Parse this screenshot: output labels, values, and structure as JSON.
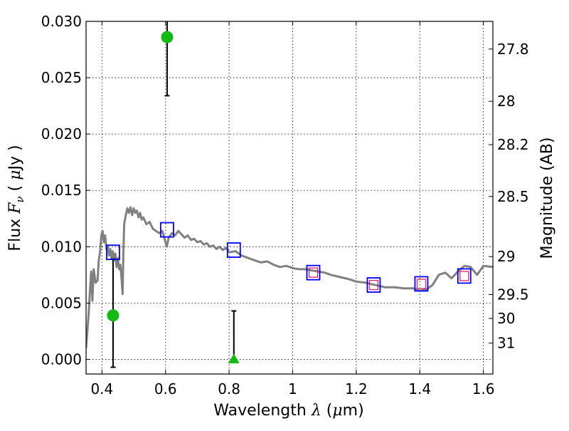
{
  "chart_data": {
    "type": "scatter",
    "xlabel": {
      "prefix": "Wavelength",
      "lambda": "λ",
      "unit_open": "(",
      "mu": "μ",
      "unit_rest": "m)"
    },
    "ylabel": {
      "prefix": "Flux",
      "F": "F",
      "nu": "ν",
      "unit_open": "(",
      "mu": "μ",
      "unit_rest": "Jy )"
    },
    "y2label": "Magnitude (AB)",
    "xlim": [
      0.35,
      1.63
    ],
    "ylim": [
      -0.0013,
      0.03
    ],
    "grid": true,
    "grid_style": "dotted",
    "x_ticks": [
      {
        "v": 0.4,
        "label": "0.4"
      },
      {
        "v": 0.6,
        "label": "0.6"
      },
      {
        "v": 0.8,
        "label": "0.8"
      },
      {
        "v": 1.0,
        "label": "1"
      },
      {
        "v": 1.2,
        "label": "1.2"
      },
      {
        "v": 1.4,
        "label": "1.4"
      },
      {
        "v": 1.6,
        "label": "1.6"
      }
    ],
    "y_ticks": [
      {
        "v": 0.0,
        "label": "0.000"
      },
      {
        "v": 0.005,
        "label": "0.005"
      },
      {
        "v": 0.01,
        "label": "0.010"
      },
      {
        "v": 0.015,
        "label": "0.015"
      },
      {
        "v": 0.02,
        "label": "0.020"
      },
      {
        "v": 0.025,
        "label": "0.025"
      },
      {
        "v": 0.03,
        "label": "0.030"
      }
    ],
    "y2_ticks": [
      {
        "mag": 27.8,
        "label": "27.8"
      },
      {
        "mag": 28,
        "label": "28"
      },
      {
        "mag": 28.2,
        "label": "28.2"
      },
      {
        "mag": 28.5,
        "label": "28.5"
      },
      {
        "mag": 29,
        "label": "29"
      },
      {
        "mag": 29.5,
        "label": "29.5"
      },
      {
        "mag": 30,
        "label": "30"
      },
      {
        "mag": 31,
        "label": "31"
      }
    ],
    "model_sed": {
      "color": "#808080",
      "points": [
        [
          0.35,
          0.001
        ],
        [
          0.358,
          0.004
        ],
        [
          0.362,
          0.006
        ],
        [
          0.366,
          0.0078
        ],
        [
          0.37,
          0.0052
        ],
        [
          0.374,
          0.008
        ],
        [
          0.38,
          0.0068
        ],
        [
          0.386,
          0.007
        ],
        [
          0.39,
          0.0088
        ],
        [
          0.394,
          0.0095
        ],
        [
          0.398,
          0.011
        ],
        [
          0.402,
          0.0114
        ],
        [
          0.406,
          0.0104
        ],
        [
          0.41,
          0.011
        ],
        [
          0.414,
          0.0098
        ],
        [
          0.418,
          0.01
        ],
        [
          0.422,
          0.0092
        ],
        [
          0.426,
          0.0098
        ],
        [
          0.43,
          0.009
        ],
        [
          0.434,
          0.0096
        ],
        [
          0.438,
          0.0088
        ],
        [
          0.442,
          0.0094
        ],
        [
          0.446,
          0.0082
        ],
        [
          0.45,
          0.009
        ],
        [
          0.454,
          0.008
        ],
        [
          0.458,
          0.0084
        ],
        [
          0.462,
          0.007
        ],
        [
          0.465,
          0.0058
        ],
        [
          0.467,
          0.009
        ],
        [
          0.47,
          0.012
        ],
        [
          0.475,
          0.0128
        ],
        [
          0.48,
          0.0134
        ],
        [
          0.485,
          0.013
        ],
        [
          0.49,
          0.0135
        ],
        [
          0.495,
          0.0128
        ],
        [
          0.5,
          0.0134
        ],
        [
          0.505,
          0.013
        ],
        [
          0.51,
          0.0132
        ],
        [
          0.515,
          0.0126
        ],
        [
          0.52,
          0.013
        ],
        [
          0.525,
          0.0124
        ],
        [
          0.53,
          0.0126
        ],
        [
          0.54,
          0.012
        ],
        [
          0.55,
          0.0122
        ],
        [
          0.56,
          0.0116
        ],
        [
          0.57,
          0.0114
        ],
        [
          0.58,
          0.0112
        ],
        [
          0.59,
          0.0114
        ],
        [
          0.598,
          0.0106
        ],
        [
          0.604,
          0.01
        ],
        [
          0.61,
          0.0108
        ],
        [
          0.62,
          0.0112
        ],
        [
          0.63,
          0.011
        ],
        [
          0.64,
          0.0114
        ],
        [
          0.65,
          0.0111
        ],
        [
          0.66,
          0.0108
        ],
        [
          0.67,
          0.011
        ],
        [
          0.68,
          0.0106
        ],
        [
          0.69,
          0.0107
        ],
        [
          0.7,
          0.0104
        ],
        [
          0.71,
          0.0105
        ],
        [
          0.72,
          0.0102
        ],
        [
          0.73,
          0.0103
        ],
        [
          0.74,
          0.01
        ],
        [
          0.75,
          0.0101
        ],
        [
          0.76,
          0.0098
        ],
        [
          0.77,
          0.01
        ],
        [
          0.78,
          0.0097
        ],
        [
          0.79,
          0.0099
        ],
        [
          0.8,
          0.0095
        ],
        [
          0.82,
          0.0096
        ],
        [
          0.84,
          0.0092
        ],
        [
          0.86,
          0.009
        ],
        [
          0.88,
          0.0088
        ],
        [
          0.9,
          0.0086
        ],
        [
          0.92,
          0.0087
        ],
        [
          0.94,
          0.0084
        ],
        [
          0.96,
          0.0082
        ],
        [
          0.98,
          0.0083
        ],
        [
          1.0,
          0.0081
        ],
        [
          1.02,
          0.008
        ],
        [
          1.04,
          0.008
        ],
        [
          1.06,
          0.0079
        ],
        [
          1.08,
          0.0078
        ],
        [
          1.1,
          0.0077
        ],
        [
          1.12,
          0.0075
        ],
        [
          1.15,
          0.0073
        ],
        [
          1.18,
          0.0071
        ],
        [
          1.2,
          0.0069
        ],
        [
          1.23,
          0.0068
        ],
        [
          1.26,
          0.0066
        ],
        [
          1.29,
          0.0064
        ],
        [
          1.32,
          0.0064
        ],
        [
          1.35,
          0.0063
        ],
        [
          1.38,
          0.0063
        ],
        [
          1.4,
          0.0061
        ],
        [
          1.42,
          0.0062
        ],
        [
          1.44,
          0.0066
        ],
        [
          1.46,
          0.0075
        ],
        [
          1.48,
          0.0077
        ],
        [
          1.5,
          0.0072
        ],
        [
          1.52,
          0.0078
        ],
        [
          1.54,
          0.0083
        ],
        [
          1.56,
          0.0082
        ],
        [
          1.58,
          0.0075
        ],
        [
          1.6,
          0.0083
        ],
        [
          1.63,
          0.0082
        ]
      ]
    },
    "model_photometry": {
      "color": "#0000ff",
      "points": [
        [
          0.435,
          0.0095
        ],
        [
          0.605,
          0.0115
        ],
        [
          0.815,
          0.0097
        ],
        [
          1.065,
          0.0077
        ],
        [
          1.255,
          0.0066
        ],
        [
          1.405,
          0.0067
        ],
        [
          1.54,
          0.0074
        ]
      ]
    },
    "observed_nir": {
      "color": "#dd2266",
      "points": [
        [
          1.065,
          0.0077
        ],
        [
          1.255,
          0.0066
        ],
        [
          1.405,
          0.0067
        ],
        [
          1.54,
          0.0074
        ]
      ]
    },
    "observed_optical": {
      "color": "#11bb11",
      "points": [
        {
          "x": 0.435,
          "y": 0.0039,
          "yerr_low": 0.0046,
          "yerr_high": 0.005,
          "marker": "circle"
        },
        {
          "x": 0.605,
          "y": 0.0286,
          "yerr_low": 0.0052,
          "yerr_high": 0.0052,
          "marker": "circle"
        },
        {
          "x": 0.815,
          "y": 0.0,
          "yerr_low": 0.0,
          "yerr_high": 0.0043,
          "marker": "triangle"
        }
      ]
    }
  }
}
